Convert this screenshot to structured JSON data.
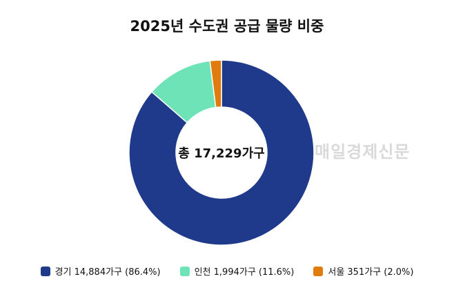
{
  "chart_data": {
    "type": "pie",
    "title": "2025년 수도권 공급 물량 비중",
    "center_label": "총 17,229가구",
    "categories": [
      "경기",
      "인천",
      "서울"
    ],
    "values": [
      86.4,
      11.6,
      2.0
    ],
    "legend_labels": [
      "경기 14,884가구 (86.4%)",
      "인천 1,994가구 (11.6%)",
      "서울 351가구 (2.0%)"
    ],
    "colors": [
      "#1f3a8a",
      "#6fe3b8",
      "#e07b0e"
    ],
    "legend_position": "bottom"
  },
  "watermark": "매일경제신문"
}
